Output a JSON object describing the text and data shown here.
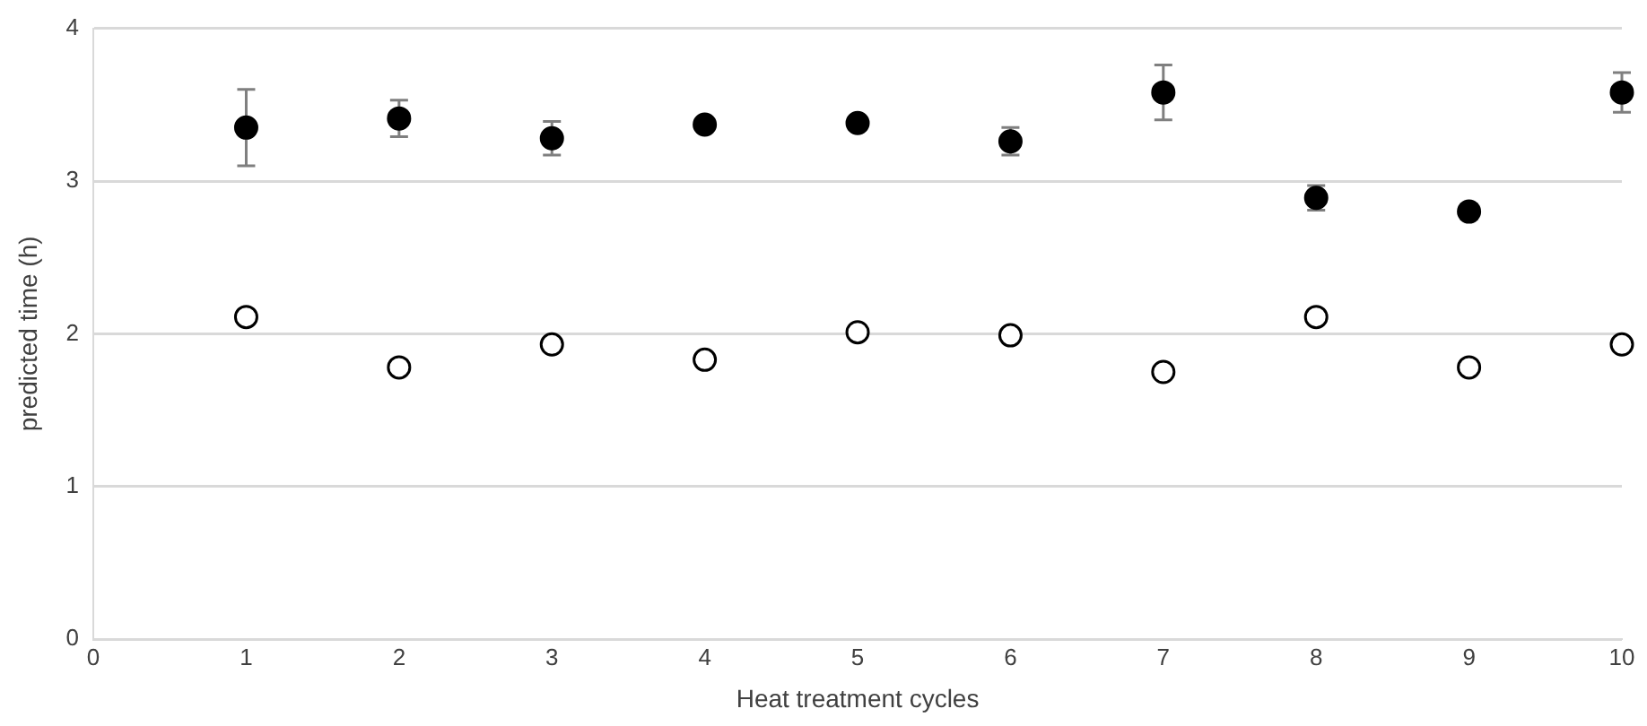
{
  "chart_data": {
    "type": "scatter",
    "xlabel": "Heat treatment cycles",
    "ylabel": "predicted time (h)",
    "xlim": [
      0,
      10
    ],
    "xticks": [
      0,
      1,
      2,
      3,
      4,
      5,
      6,
      7,
      8,
      9,
      10
    ],
    "ylim": [
      0,
      4
    ],
    "yticks": [
      0,
      1,
      2,
      3,
      4
    ],
    "grid": "y",
    "legend": false,
    "marker": "circle",
    "series": [
      {
        "color": "#000000",
        "x": [
          1,
          2,
          3,
          4,
          5,
          6,
          7,
          8,
          9,
          10
        ],
        "values": [
          3.35,
          3.41,
          3.28,
          3.37,
          3.38,
          3.26,
          3.58,
          2.89,
          2.8,
          3.58
        ],
        "errors": [
          0.25,
          0.12,
          0.11,
          null,
          null,
          0.09,
          0.18,
          0.08,
          0.05,
          0.13
        ]
      },
      {
        "color": "#ffffff",
        "x": [
          1,
          2,
          3,
          4,
          5,
          6,
          7,
          8,
          9,
          10
        ],
        "values": [
          2.11,
          1.78,
          1.93,
          1.83,
          2.01,
          1.99,
          1.75,
          2.11,
          1.78,
          1.93
        ]
      }
    ]
  }
}
